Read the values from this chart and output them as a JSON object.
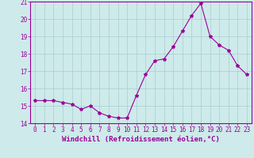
{
  "xlabel": "Windchill (Refroidissement éolien,°C)",
  "x": [
    0,
    1,
    2,
    3,
    4,
    5,
    6,
    7,
    8,
    9,
    10,
    11,
    12,
    13,
    14,
    15,
    16,
    17,
    18,
    19,
    20,
    21,
    22,
    23
  ],
  "y": [
    15.3,
    15.3,
    15.3,
    15.2,
    15.1,
    14.8,
    15.0,
    14.6,
    14.4,
    14.3,
    14.3,
    15.6,
    16.8,
    17.6,
    17.7,
    18.4,
    19.3,
    20.2,
    20.9,
    19.0,
    18.5,
    18.2,
    17.3,
    16.8
  ],
  "line_color": "#990099",
  "marker": "*",
  "marker_size": 3,
  "bg_color": "#ceeaea",
  "grid_color": "#aacece",
  "ylim": [
    14,
    21
  ],
  "xlim": [
    -0.5,
    23.5
  ],
  "yticks": [
    14,
    15,
    16,
    17,
    18,
    19,
    20,
    21
  ],
  "xticks": [
    0,
    1,
    2,
    3,
    4,
    5,
    6,
    7,
    8,
    9,
    10,
    11,
    12,
    13,
    14,
    15,
    16,
    17,
    18,
    19,
    20,
    21,
    22,
    23
  ],
  "tick_color": "#990099",
  "label_color": "#990099",
  "tick_fontsize": 5.5,
  "xlabel_fontsize": 6.5,
  "linewidth": 0.8
}
